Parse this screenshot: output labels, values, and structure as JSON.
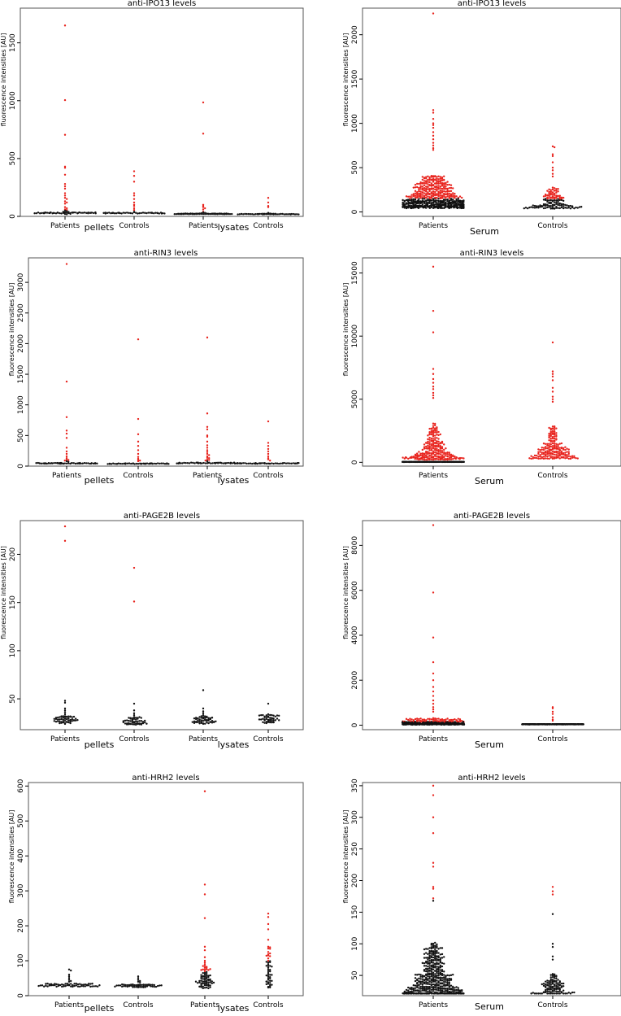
{
  "figure": {
    "colors": {
      "high": "#e8231d",
      "normal": "#111111",
      "frame": "#555555",
      "background": "#ffffff"
    }
  },
  "chart_data": [
    {
      "type": "scatter",
      "subtype": "beeswarm",
      "title": "anti-IPO13 levels",
      "ylabel": "fluorescence intensities [AU]",
      "categories": [
        "Patients",
        "Controls",
        "Patients",
        "Controls"
      ],
      "groups": [
        "pellets",
        "lysates"
      ],
      "ylim": [
        0,
        1800
      ],
      "yticks": [
        0,
        500,
        1000,
        1500
      ],
      "series": [
        {
          "points": [
            1650,
            1005,
            705,
            430,
            420,
            360,
            280,
            260,
            240,
            200,
            180,
            160,
            150,
            130,
            120,
            110,
            80,
            70,
            60,
            55,
            50,
            45,
            40,
            38,
            35,
            32,
            30,
            28,
            25,
            22,
            20,
            18
          ],
          "count": 75,
          "normal_level": 30
        },
        {
          "points": [
            390,
            350,
            300,
            200,
            180,
            150,
            120,
            100,
            90,
            70,
            55,
            40,
            35,
            30
          ],
          "count": 55,
          "normal_level": 28
        },
        {
          "points": [
            985,
            715,
            100,
            90,
            80,
            70,
            60,
            40,
            35,
            30,
            28,
            25
          ],
          "count": 70,
          "normal_level": 22
        },
        {
          "points": [
            160,
            120,
            90,
            80,
            30,
            25,
            22,
            20
          ],
          "count": 50,
          "normal_level": 20
        }
      ]
    },
    {
      "type": "scatter",
      "subtype": "beeswarm",
      "title": "anti-IPO13 levels",
      "ylabel": "fluorescence intensities [AU]",
      "categories": [
        "Patients",
        "Controls"
      ],
      "groups": [
        "Serum"
      ],
      "ylim": [
        -50,
        2300
      ],
      "yticks": [
        0,
        500,
        1000,
        1500,
        2000
      ],
      "series": [
        {
          "points": [
            2240,
            1150,
            1120,
            1050,
            1000,
            980,
            950,
            900,
            860,
            820,
            780,
            750,
            720,
            700
          ],
          "count": 600,
          "distribution": {
            "median": 130,
            "p90": 450,
            "high_threshold": 150
          }
        },
        {
          "points": [
            740,
            730,
            650,
            630,
            560,
            500,
            470,
            430,
            400
          ],
          "count": 150,
          "distribution": {
            "median": 100,
            "p90": 300,
            "high_threshold": 150
          }
        }
      ]
    },
    {
      "type": "scatter",
      "subtype": "beeswarm",
      "title": "anti-RIN3 levels",
      "ylabel": "fluorescence intensities [AU]",
      "categories": [
        "Patients",
        "Controls",
        "Patients",
        "Controls"
      ],
      "groups": [
        "pellets",
        "lysates"
      ],
      "ylim": [
        0,
        3400
      ],
      "yticks": [
        0,
        500,
        1000,
        1500,
        2000,
        2500,
        3000
      ],
      "series": [
        {
          "points": [
            3300,
            1380,
            800,
            580,
            530,
            460,
            300,
            240,
            200,
            160,
            130,
            110,
            100,
            90,
            80,
            70
          ],
          "count": 70,
          "normal_level": 45
        },
        {
          "points": [
            2070,
            770,
            520,
            400,
            330,
            260,
            200,
            150,
            120,
            100,
            90,
            80
          ],
          "count": 60,
          "normal_level": 40
        },
        {
          "points": [
            2100,
            860,
            640,
            600,
            500,
            480,
            400,
            340,
            300,
            260,
            230,
            200,
            180,
            160,
            140,
            130,
            110,
            100,
            90,
            80
          ],
          "count": 70,
          "normal_level": 50
        },
        {
          "points": [
            730,
            380,
            330,
            280,
            240,
            200,
            160,
            130,
            110,
            90
          ],
          "count": 60,
          "normal_level": 45
        }
      ]
    },
    {
      "type": "scatter",
      "subtype": "beeswarm",
      "title": "anti-RIN3 levels",
      "ylabel": "fluorescence intensities [AU]",
      "categories": [
        "Patients",
        "Controls"
      ],
      "groups": [
        "Serum"
      ],
      "ylim": [
        -300,
        16200
      ],
      "yticks": [
        0,
        5000,
        10000,
        15000
      ],
      "series": [
        {
          "points": [
            15500,
            12000,
            10300,
            7400,
            7000,
            6600,
            6300,
            6000,
            5800,
            5500,
            5300,
            5100
          ],
          "count": 450,
          "normal_level": 30,
          "distribution": {
            "median": 800,
            "p90": 3500,
            "high_threshold": 200
          }
        },
        {
          "points": [
            9500,
            7200,
            7000,
            6800,
            6500,
            5900,
            5600,
            5200,
            5000,
            4800
          ],
          "count": 200,
          "distribution": {
            "median": 900,
            "p90": 3200,
            "high_threshold": 200
          }
        }
      ]
    },
    {
      "type": "scatter",
      "subtype": "beeswarm",
      "title": "anti-PAGE2B levels",
      "ylabel": "fluorescence intensities [AU]",
      "categories": [
        "Patients",
        "Controls",
        "Patients",
        "Controls"
      ],
      "groups": [
        "pellets",
        "lysates"
      ],
      "ylim": [
        18,
        235
      ],
      "yticks": [
        50,
        100,
        150,
        200
      ],
      "series": [
        {
          "points": [
            229,
            214,
            48,
            46,
            40,
            38,
            36,
            34
          ],
          "high": [
            229,
            214
          ],
          "count": 60,
          "normal_level": 28
        },
        {
          "points": [
            186,
            151,
            45,
            38,
            35,
            33,
            31
          ],
          "high": [
            186,
            151
          ],
          "count": 55,
          "normal_level": 27
        },
        {
          "points": [
            59,
            40,
            37,
            35,
            33,
            31
          ],
          "high": [],
          "count": 55,
          "normal_level": 28
        },
        {
          "points": [
            45,
            34,
            32,
            31
          ],
          "high": [],
          "count": 45,
          "normal_level": 29
        }
      ]
    },
    {
      "type": "scatter",
      "subtype": "beeswarm",
      "title": "anti-PAGE2B levels",
      "ylabel": "fluorescence intensities [AU]",
      "categories": [
        "Patients",
        "Controls"
      ],
      "groups": [
        "Serum"
      ],
      "ylim": [
        -200,
        9100
      ],
      "yticks": [
        0,
        2000,
        4000,
        6000,
        8000
      ],
      "series": [
        {
          "points": [
            8900,
            5900,
            3900,
            2800,
            2300,
            2000,
            1700,
            1500,
            1300,
            1100,
            950,
            800,
            700,
            600
          ],
          "count": 500,
          "normal_level": 40,
          "distribution": {
            "median": 80,
            "p90": 350,
            "high_threshold": 150
          }
        },
        {
          "points": [
            800,
            750,
            600,
            500,
            350,
            250,
            200
          ],
          "count": 300,
          "normal_level": 40
        }
      ]
    },
    {
      "type": "scatter",
      "subtype": "beeswarm",
      "title": "anti-HRH2 levels",
      "ylabel": "fluorescence intensities [AU]",
      "categories": [
        "Patients",
        "Controls",
        "Patients",
        "Controls"
      ],
      "groups": [
        "pellets",
        "lysates"
      ],
      "ylim": [
        0,
        610
      ],
      "yticks": [
        0,
        100,
        200,
        300,
        400,
        500,
        600
      ],
      "series": [
        {
          "points": [
            75,
            72,
            60,
            55,
            50,
            45,
            42,
            40
          ],
          "high": [],
          "count": 70,
          "normal_level": 30
        },
        {
          "points": [
            55,
            50,
            45,
            42,
            40,
            38
          ],
          "high": [],
          "count": 60,
          "normal_level": 28
        },
        {
          "points": [
            585,
            318,
            290,
            222,
            140,
            130,
            110,
            100,
            95,
            90,
            85,
            80,
            75,
            70,
            65,
            60,
            55,
            50,
            48,
            45,
            42,
            40
          ],
          "count": 80,
          "distribution": {
            "median": 42,
            "p90": 90,
            "high_threshold": 70
          }
        },
        {
          "points": [
            235,
            225,
            205,
            190,
            160,
            140,
            125,
            115,
            100,
            95,
            90,
            85,
            80,
            75,
            70,
            65,
            60,
            55,
            50
          ],
          "count": 55,
          "distribution": {
            "median": 55,
            "p90": 150,
            "high_threshold": 100
          }
        }
      ]
    },
    {
      "type": "scatter",
      "subtype": "beeswarm",
      "title": "anti-HRH2 levels",
      "ylabel": "fluorescence intensities [AU]",
      "categories": [
        "Patients",
        "Controls"
      ],
      "groups": [
        "Serum"
      ],
      "ylim": [
        18,
        355
      ],
      "yticks": [
        50,
        100,
        150,
        200,
        250,
        300,
        350
      ],
      "series": [
        {
          "points": [
            350,
            335,
            300,
            275,
            228,
            222,
            190,
            187,
            172,
            168
          ],
          "count": 500,
          "distribution": {
            "median": 40,
            "p90": 110,
            "high_threshold": 170
          }
        },
        {
          "points": [
            190,
            183,
            178,
            147,
            100,
            95,
            80,
            75
          ],
          "count": 120,
          "distribution": {
            "median": 32,
            "p90": 55,
            "high_threshold": 170
          }
        }
      ]
    }
  ]
}
